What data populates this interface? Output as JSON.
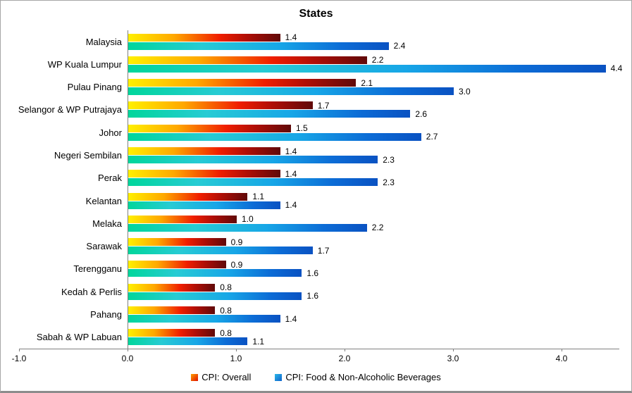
{
  "chart_data": {
    "type": "bar",
    "orientation": "horizontal",
    "title": "States",
    "categories": [
      "Malaysia",
      "WP Kuala Lumpur",
      "Pulau Pinang",
      "Selangor & WP Putrajaya",
      "Johor",
      "Negeri Sembilan",
      "Perak",
      "Kelantan",
      "Melaka",
      "Sarawak",
      "Terengganu",
      "Kedah & Perlis",
      "Pahang",
      "Sabah & WP Labuan"
    ],
    "series": [
      {
        "name": "CPI: Overall",
        "color_gradient": [
          "#FFF000",
          "#FFA800",
          "#F01E00",
          "#600909"
        ],
        "values": [
          1.4,
          2.2,
          2.1,
          1.7,
          1.5,
          1.4,
          1.4,
          1.1,
          1.0,
          0.9,
          0.9,
          0.8,
          0.8,
          0.8
        ]
      },
      {
        "name": "CPI: Food & Non-Alcoholic Beverages",
        "color_gradient": [
          "#00D69B",
          "#27CBD4",
          "#17A6E7",
          "#0A52C2"
        ],
        "values": [
          2.4,
          4.4,
          3.0,
          2.6,
          2.7,
          2.3,
          2.3,
          1.4,
          2.2,
          1.7,
          1.6,
          1.6,
          1.4,
          1.1
        ]
      }
    ],
    "x_ticks": [
      -1.0,
      0.0,
      1.0,
      2.0,
      3.0,
      4.0
    ],
    "xlim": [
      -1.0,
      4.5
    ],
    "value_labels_shown": true,
    "value_label_format": "0.0",
    "grid": false,
    "legend_position": "bottom",
    "axis_color": "#808080"
  }
}
